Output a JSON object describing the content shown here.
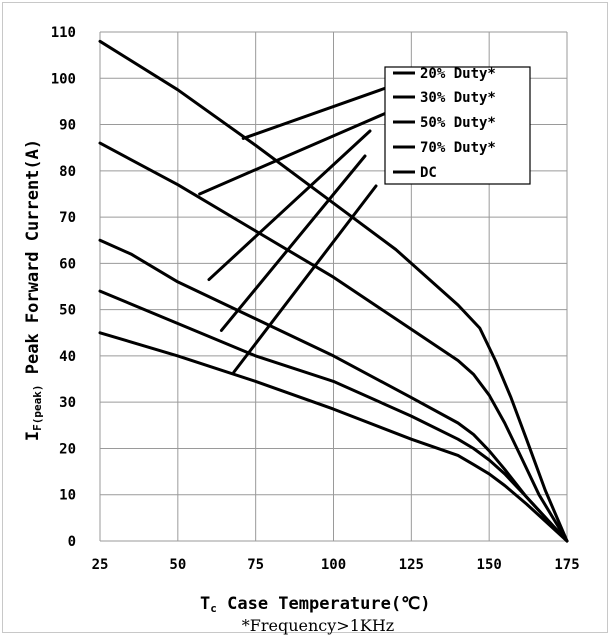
{
  "chart_data": {
    "type": "line",
    "title": "",
    "xlabel": "Tc Case Temperature(℃)",
    "xlabel_main": "T",
    "xlabel_sub": "c",
    "xlabel_rest": " Case Temperature(℃)",
    "ylabel_main": "I",
    "ylabel_sub": "F(peak)",
    "ylabel_rest": " Peak Forward Current(A)",
    "footnote": "*Frequency>1KHz",
    "xlim": [
      25,
      175
    ],
    "ylim": [
      0,
      110
    ],
    "xticks": [
      25,
      50,
      75,
      100,
      125,
      150,
      175
    ],
    "yticks": [
      0,
      10,
      20,
      30,
      40,
      50,
      60,
      70,
      80,
      90,
      100,
      110
    ],
    "grid": true,
    "legend_position": "top-right",
    "series": [
      {
        "name": "20% Duty*",
        "x": [
          25,
          50,
          75,
          100,
          120,
          140,
          147,
          152,
          157,
          162,
          168,
          175
        ],
        "y": [
          108,
          97.5,
          85.5,
          73,
          63,
          51,
          46,
          39,
          31,
          22,
          11,
          0
        ]
      },
      {
        "name": "30% Duty*",
        "x": [
          25,
          50,
          75,
          100,
          120,
          140,
          145,
          150,
          155,
          160,
          166,
          175
        ],
        "y": [
          86,
          77,
          67,
          57,
          48,
          39,
          36,
          31.5,
          25.5,
          18.5,
          10,
          0
        ]
      },
      {
        "name": "50% Duty*",
        "x": [
          25,
          35,
          50,
          75,
          100,
          125,
          140,
          145,
          150,
          155,
          162,
          175
        ],
        "y": [
          65,
          62,
          56,
          48,
          40,
          31,
          25.5,
          23,
          19.5,
          15.5,
          9.5,
          0
        ]
      },
      {
        "name": "70% Duty*",
        "x": [
          25,
          50,
          75,
          100,
          125,
          140,
          145,
          150,
          155,
          162,
          175
        ],
        "y": [
          54,
          47,
          40,
          34.5,
          27,
          22,
          20,
          17.5,
          14.5,
          9.5,
          0
        ]
      },
      {
        "name": "DC",
        "x": [
          25,
          50,
          75,
          100,
          125,
          140,
          145,
          150,
          155,
          162,
          175
        ],
        "y": [
          45,
          40,
          34.5,
          28.5,
          22,
          18.5,
          16.5,
          14.5,
          12,
          8,
          0
        ]
      }
    ]
  }
}
